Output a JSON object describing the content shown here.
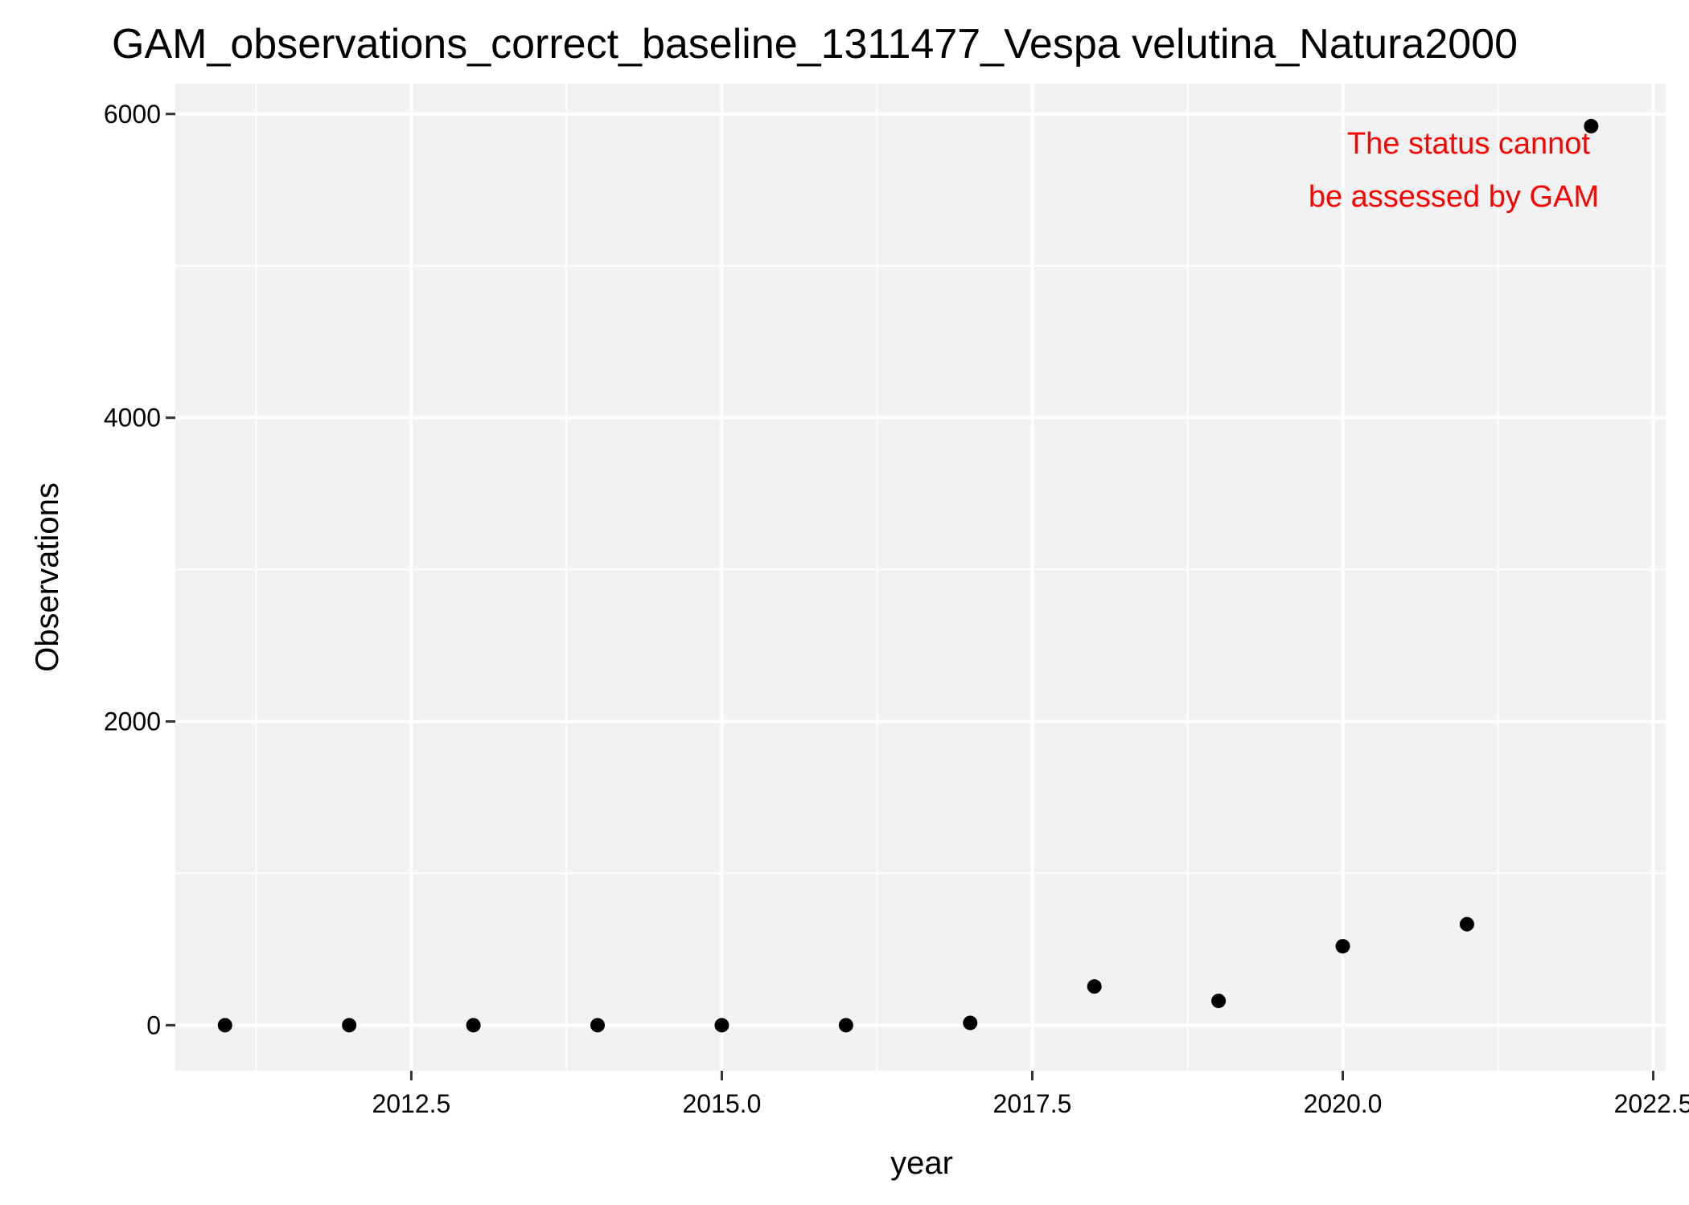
{
  "chart_data": {
    "type": "scatter",
    "title": "GAM_observations_correct_baseline_1311477_Vespa velutina_Natura2000",
    "xlabel": "year",
    "ylabel": "Observations",
    "xlim": [
      2010.6,
      2022.6
    ],
    "ylim": [
      -300,
      6200
    ],
    "x_ticks": [
      2012.5,
      2015.0,
      2017.5,
      2020.0,
      2022.5
    ],
    "x_tick_labels": [
      "2012.5",
      "2015.0",
      "2017.5",
      "2020.0",
      "2022.5"
    ],
    "y_ticks": [
      0,
      2000,
      4000,
      6000
    ],
    "y_tick_labels": [
      "0",
      "2000",
      "4000",
      "6000"
    ],
    "points": [
      {
        "x": 2011,
        "y": 0
      },
      {
        "x": 2012,
        "y": 0
      },
      {
        "x": 2013,
        "y": 0
      },
      {
        "x": 2014,
        "y": 0
      },
      {
        "x": 2015,
        "y": 0
      },
      {
        "x": 2016,
        "y": 0
      },
      {
        "x": 2017,
        "y": 15
      },
      {
        "x": 2018,
        "y": 255
      },
      {
        "x": 2019,
        "y": 160
      },
      {
        "x": 2020,
        "y": 520
      },
      {
        "x": 2021,
        "y": 665
      },
      {
        "x": 2022,
        "y": 5920
      }
    ],
    "annotation": {
      "lines": [
        "The status cannot",
        "be assessed by GAM"
      ],
      "color": "#ff0000"
    },
    "panel_background": "#f2f2f2",
    "grid_color": "#ffffff",
    "point_color": "#000000"
  }
}
